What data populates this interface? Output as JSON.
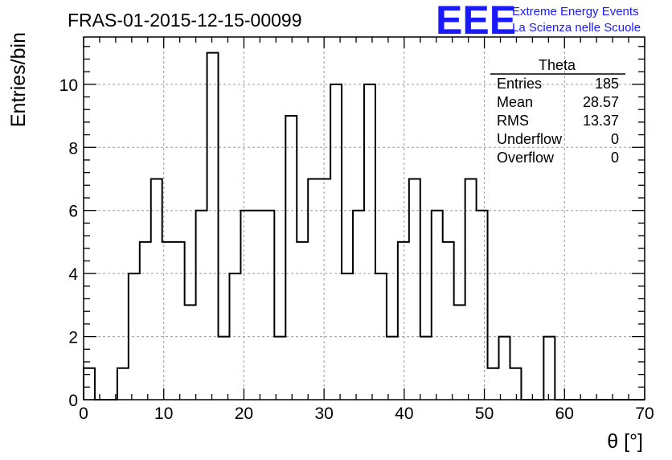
{
  "page_title": "FRAS-01-2015-12-15-00099",
  "logo": {
    "mark": "EEE",
    "line1": "Extreme Energy Events",
    "line2": "La Scienza nelle Scuole",
    "color": "#1a1aff"
  },
  "stats": {
    "title": "Theta",
    "rows": [
      {
        "label": "Entries",
        "value": "185"
      },
      {
        "label": "Mean",
        "value": "28.57"
      },
      {
        "label": "RMS",
        "value": "13.37"
      },
      {
        "label": "Underflow",
        "value": "0"
      },
      {
        "label": "Overflow",
        "value": "0"
      }
    ]
  },
  "chart_data": {
    "type": "bar",
    "style": "step-histogram",
    "title": "FRAS-01-2015-12-15-00099",
    "xlabel": "θ [°]",
    "ylabel": "Entries/bin",
    "xlim": [
      0,
      70
    ],
    "ylim": [
      0,
      11.5
    ],
    "xticks": [
      0,
      10,
      20,
      30,
      40,
      50,
      60,
      70
    ],
    "yticks": [
      0,
      2,
      4,
      6,
      8,
      10
    ],
    "grid": true,
    "bin_width": 1.4,
    "bin_edges_start": 0,
    "values": [
      1,
      0,
      0,
      1,
      4,
      5,
      7,
      5,
      5,
      3,
      6,
      11,
      2,
      4,
      6,
      6,
      6,
      2,
      9,
      5,
      7,
      7,
      10,
      4,
      6,
      10,
      4,
      2,
      5,
      7,
      2,
      6,
      5,
      3,
      7,
      6,
      1,
      2,
      1,
      0,
      0,
      2,
      0,
      0,
      0,
      0,
      0,
      0,
      0,
      0
    ]
  }
}
